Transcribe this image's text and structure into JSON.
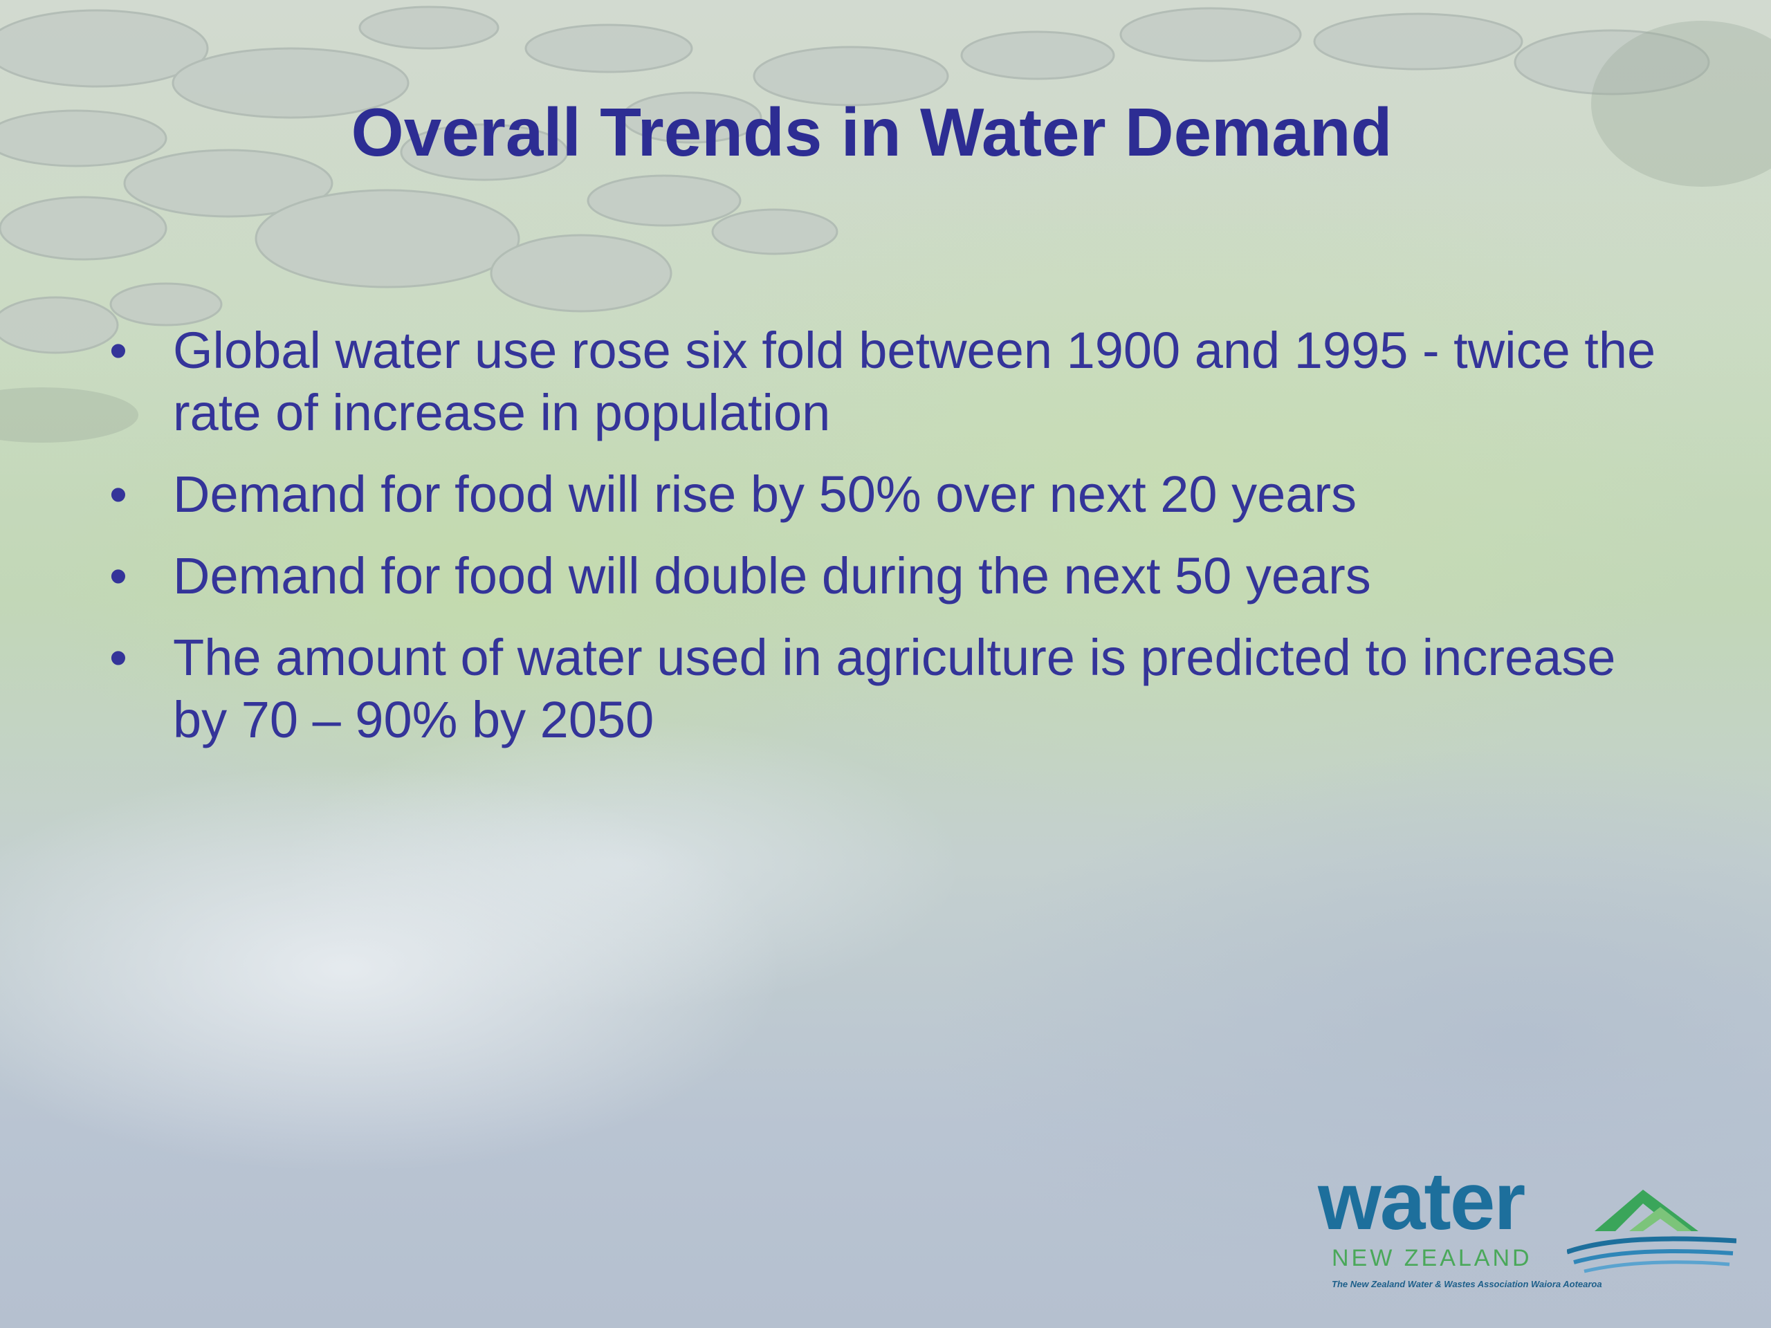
{
  "slide": {
    "title": "Overall Trends in Water Demand",
    "bullet_glyph": "•",
    "bullets": [
      {
        "text": "Global water use rose six fold between 1900 and 1995 - twice the rate of increase in population"
      },
      {
        "text": "Demand for food will rise by 50% over next 20 years"
      },
      {
        "text": "Demand for food will double during the next 50 years"
      },
      {
        "text": "The amount of water used in agriculture is predicted to increase by 70 – 90% by 2050"
      }
    ]
  },
  "logo": {
    "word": "water",
    "subtitle": "NEW ZEALAND",
    "tagline": "The New Zealand Water & Wastes Association Waiora Aotearoa"
  },
  "colors": {
    "title": "#2d2d93",
    "body": "#343499",
    "logo_blue": "#1d6f9c",
    "logo_green": "#4aa85a"
  }
}
